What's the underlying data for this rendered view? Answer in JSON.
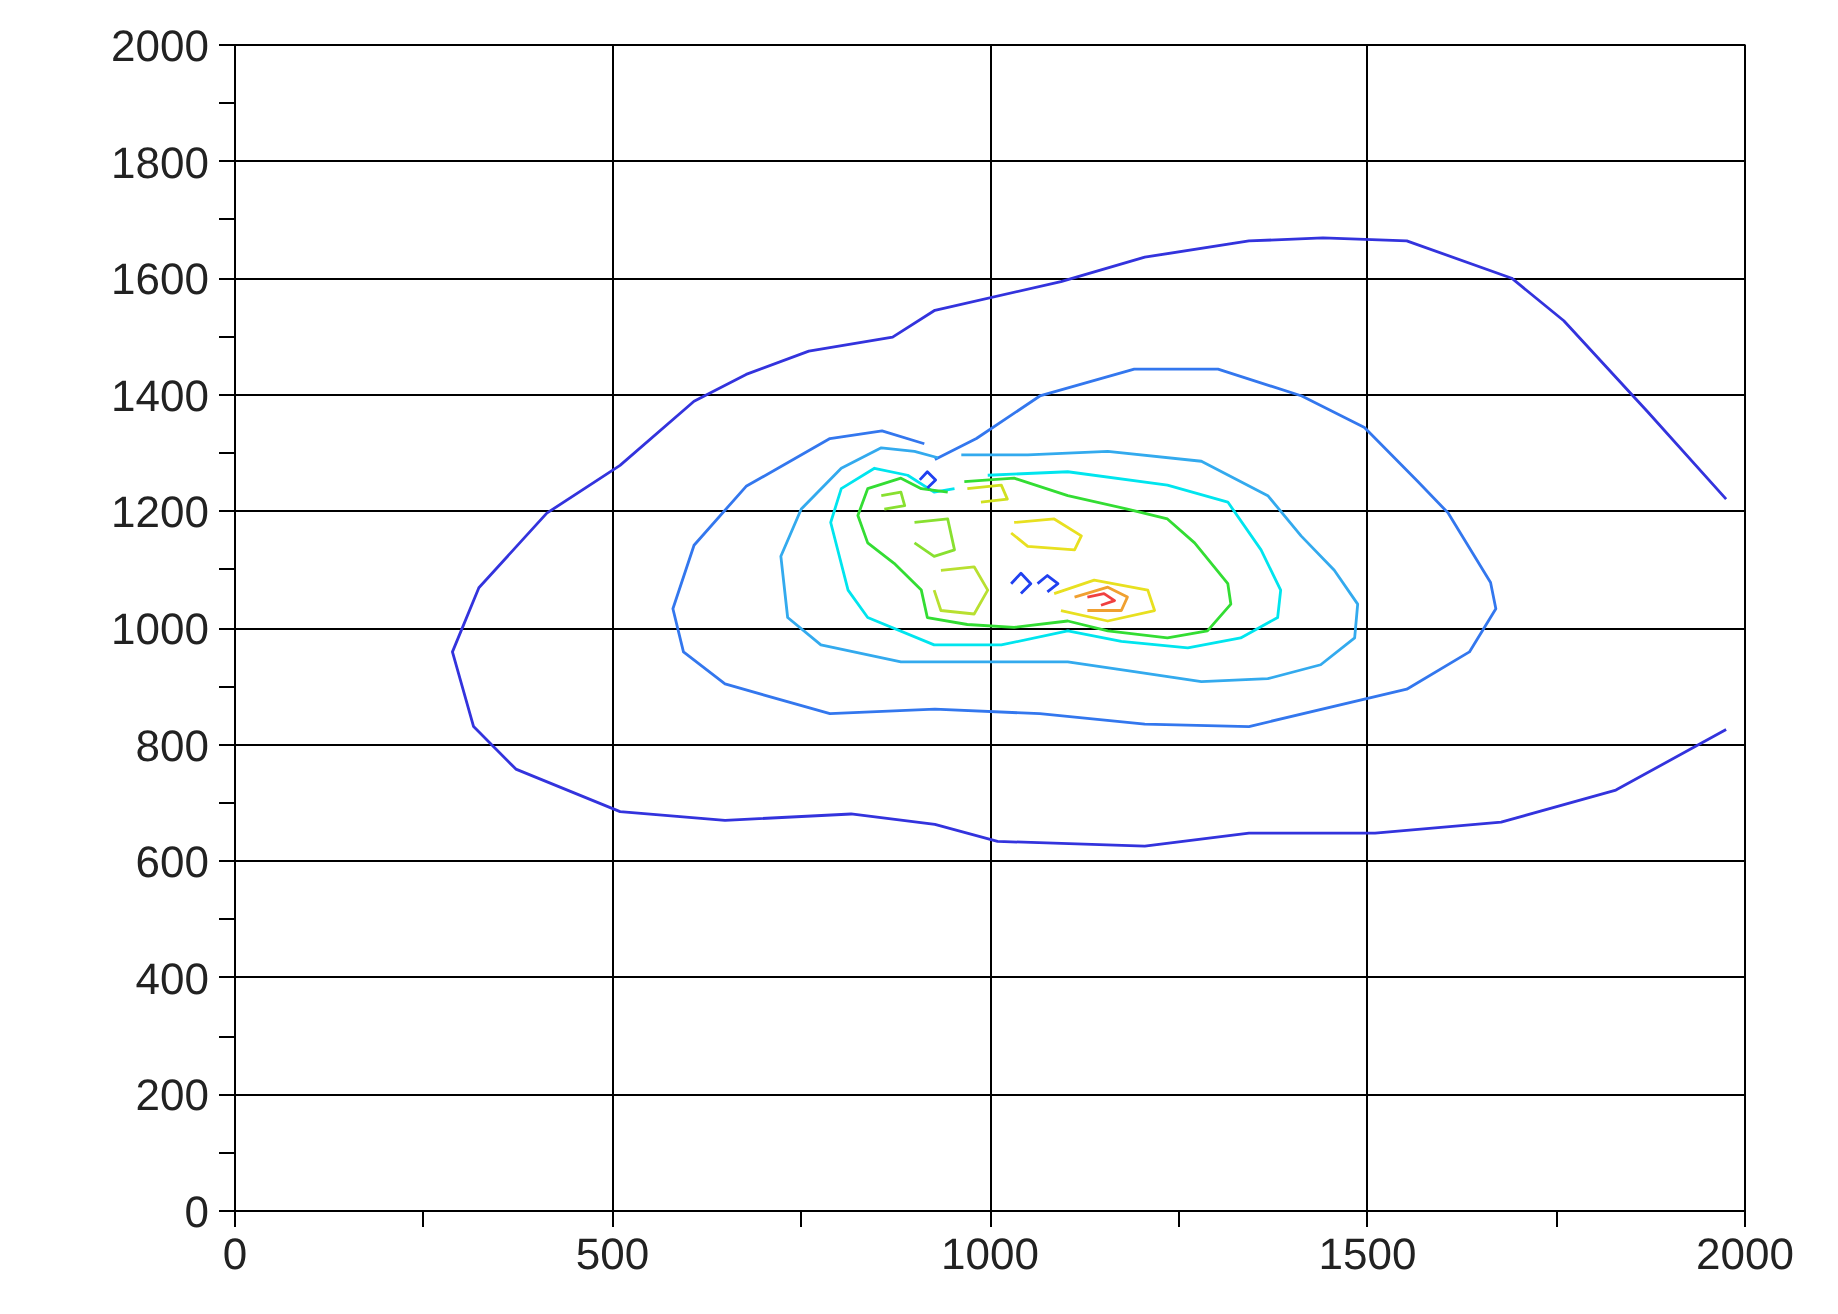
{
  "chart_data": {
    "type": "line",
    "grid": true,
    "marker": "none",
    "line_style": "solid",
    "xlim": [
      0,
      2000
    ],
    "ylim": [
      0,
      2000
    ],
    "xticks": [
      0,
      {
        "value": 250,
        "label": null
      },
      500,
      {
        "value": 750,
        "label": null
      },
      1000,
      {
        "value": 1250,
        "label": null
      },
      1500,
      {
        "value": 1750,
        "label": null
      },
      2000
    ],
    "yticks": [
      0,
      {
        "value": 100,
        "label": null
      },
      200,
      {
        "value": 300,
        "label": null
      },
      400,
      {
        "value": 500,
        "label": null
      },
      600,
      {
        "value": 700,
        "label": null
      },
      800,
      {
        "value": 900,
        "label": null
      },
      1000,
      {
        "value": 1100,
        "label": null
      },
      1200,
      {
        "value": 1300,
        "label": null
      },
      1400,
      {
        "value": 1500,
        "label": null
      },
      1600,
      {
        "value": 1700,
        "label": null
      },
      1800,
      {
        "value": 1900,
        "label": null
      },
      2000
    ],
    "series": [
      {
        "color": "#3333dd",
        "x": [
          1975,
          1871,
          1760,
          1691,
          1552,
          1441,
          1343,
          1205,
          1094,
          927,
          871,
          760,
          677,
          608,
          510,
          413,
          323,
          288,
          316,
          372,
          510,
          649,
          816,
          927,
          1010,
          1205,
          1343,
          1510,
          1677,
          1829,
          1975
        ],
        "values": [
          1221,
          1371,
          1527,
          1600,
          1664,
          1669,
          1664,
          1636,
          1594,
          1545,
          1499,
          1475,
          1435,
          1389,
          1279,
          1197,
          1069,
          959,
          831,
          758,
          685,
          670,
          681,
          663,
          634,
          626,
          648,
          648,
          667,
          722,
          826
        ]
      },
      {
        "color": "#3377ee",
        "x": [
          927,
          982,
          1066,
          1191,
          1302,
          1413,
          1496,
          1566,
          1607,
          1663,
          1670,
          1635,
          1552,
          1343,
          1205,
          1066,
          927,
          788,
          649,
          594,
          580,
          608,
          677,
          788,
          857,
          913
        ],
        "values": [
          1289,
          1325,
          1398,
          1444,
          1444,
          1398,
          1344,
          1252,
          1197,
          1078,
          1033,
          959,
          895,
          831,
          835,
          853,
          861,
          853,
          904,
          959,
          1033,
          1142,
          1243,
          1325,
          1338,
          1316
        ]
      },
      {
        "color": "#33aaee",
        "x": [
          962,
          1050,
          1156,
          1280,
          1368,
          1412,
          1456,
          1487,
          1483,
          1438,
          1368,
          1280,
          1191,
          1103,
          1015,
          882,
          776,
          732,
          723,
          750,
          803,
          856,
          900,
          931
        ],
        "values": [
          1297,
          1297,
          1303,
          1286,
          1227,
          1158,
          1099,
          1041,
          983,
          937,
          913,
          908,
          925,
          942,
          942,
          942,
          971,
          1018,
          1123,
          1204,
          1274,
          1309,
          1303,
          1292
        ]
      },
      {
        "color": "#00e5ee",
        "x": [
          997,
          1103,
          1235,
          1315,
          1359,
          1385,
          1381,
          1332,
          1262,
          1174,
          1103,
          1015,
          926,
          838,
          812,
          789,
          803,
          847,
          891,
          926,
          953
        ],
        "values": [
          1262,
          1268,
          1245,
          1216,
          1134,
          1065,
          1018,
          983,
          966,
          977,
          995,
          971,
          971,
          1018,
          1065,
          1181,
          1239,
          1274,
          1262,
          1233,
          1239
        ]
      },
      {
        "color": "#33dd33",
        "x": [
          966,
          1032,
          1103,
          1182,
          1235,
          1271,
          1315,
          1319,
          1288,
          1235,
          1156,
          1103,
          1032,
          970,
          917,
          909,
          873,
          838,
          825,
          838,
          882,
          909,
          944
        ],
        "values": [
          1251,
          1257,
          1227,
          1204,
          1187,
          1146,
          1076,
          1041,
          995,
          983,
          995,
          1012,
          1001,
          1006,
          1018,
          1065,
          1111,
          1146,
          1193,
          1239,
          1257,
          1239,
          1233
        ]
      },
      {
        "color": "#88e030",
        "x": [
          856,
          882,
          887,
          860
        ],
        "values": [
          1227,
          1233,
          1210,
          1204
        ]
      },
      {
        "color": "#88e030",
        "x": [
          900,
          944,
          953,
          926,
          900
        ],
        "values": [
          1181,
          1187,
          1134,
          1123,
          1146
        ]
      },
      {
        "color": "#d0e020",
        "x": [
          970,
          1015,
          1023,
          988
        ],
        "values": [
          1239,
          1245,
          1221,
          1216
        ]
      },
      {
        "color": "#e8e020",
        "x": [
          1032,
          1085,
          1121,
          1112,
          1050,
          1028
        ],
        "values": [
          1181,
          1187,
          1158,
          1134,
          1140,
          1163
        ]
      },
      {
        "color": "#b8e030",
        "x": [
          935,
          979,
          997,
          979,
          935,
          926
        ],
        "values": [
          1099,
          1105,
          1065,
          1024,
          1030,
          1065
        ]
      },
      {
        "color": "#e8e020",
        "x": [
          1085,
          1138,
          1209,
          1218,
          1156,
          1094
        ],
        "values": [
          1059,
          1082,
          1065,
          1030,
          1012,
          1030
        ]
      },
      {
        "color": "#f0a030",
        "x": [
          1112,
          1156,
          1182,
          1174,
          1129
        ],
        "values": [
          1053,
          1070,
          1053,
          1030,
          1030
        ]
      },
      {
        "color": "#f04040",
        "x": [
          1129,
          1151,
          1165,
          1147
        ],
        "values": [
          1053,
          1059,
          1047,
          1039
        ]
      },
      {
        "color": "#2040f0",
        "x": [
          1028,
          1041,
          1054,
          1041
        ],
        "values": [
          1076,
          1094,
          1076,
          1059
        ]
      },
      {
        "color": "#2040f0",
        "x": [
          1063,
          1076,
          1090,
          1076
        ],
        "values": [
          1076,
          1090,
          1076,
          1062
        ]
      },
      {
        "color": "#2040f0",
        "x": [
          907,
          917,
          928,
          917
        ],
        "values": [
          1254,
          1268,
          1254,
          1240
        ]
      }
    ]
  }
}
